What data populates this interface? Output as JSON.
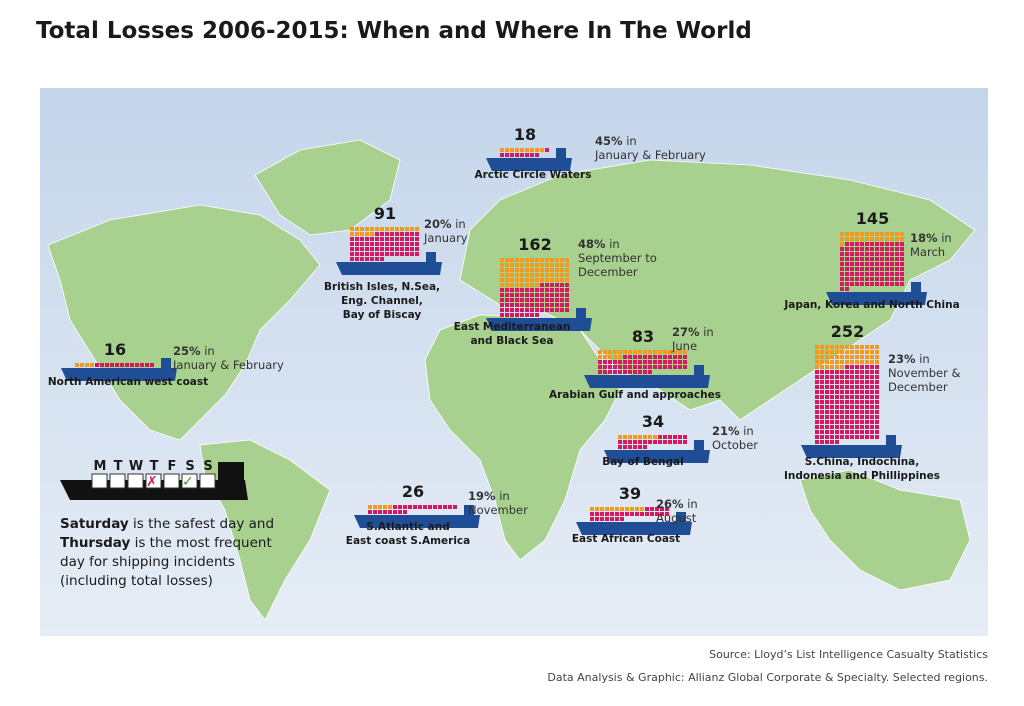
{
  "header": {
    "title": "Total Losses 2006-2015: When and Where In The World"
  },
  "connector": "in",
  "regions": [
    {
      "count": 18,
      "share": {
        "value": 45,
        "label": "45%"
      },
      "when": [
        "January & February"
      ],
      "name": [
        "Arctic Circle Waters"
      ]
    },
    {
      "count": 91,
      "share": {
        "value": 20,
        "label": "20%"
      },
      "when": [
        "January"
      ],
      "name": [
        "British Isles, N.Sea,",
        "Eng. Channel,",
        "Bay of Biscay"
      ]
    },
    {
      "count": 162,
      "share": {
        "value": 48,
        "label": "48%"
      },
      "when": [
        "September to",
        "December"
      ],
      "name": [
        "East Mediterranean",
        "and Black Sea"
      ]
    },
    {
      "count": 145,
      "share": {
        "value": 18,
        "label": "18%"
      },
      "when": [
        "March"
      ],
      "name": [
        "Japan, Korea and North China"
      ]
    },
    {
      "count": 16,
      "share": {
        "value": 25,
        "label": "25%"
      },
      "when": [
        "January & February"
      ],
      "name": [
        "North American west coast"
      ]
    },
    {
      "count": 83,
      "share": {
        "value": 27,
        "label": "27%"
      },
      "when": [
        "June"
      ],
      "name": [
        "Arabian Gulf and approaches"
      ]
    },
    {
      "count": 252,
      "share": {
        "value": 23,
        "label": "23%"
      },
      "when": [
        "November &",
        "December"
      ],
      "name": [
        "S.China, Indochina,",
        "Indonesia and Phillippines"
      ]
    },
    {
      "count": 34,
      "share": {
        "value": 21,
        "label": "21%"
      },
      "when": [
        "October"
      ],
      "name": [
        "Bay of Bengal"
      ]
    },
    {
      "count": 26,
      "share": {
        "value": 19,
        "label": "19%"
      },
      "when": [
        "November"
      ],
      "name": [
        "S.Atlantic and",
        "East coast S.America"
      ]
    },
    {
      "count": 39,
      "share": {
        "value": 26,
        "label": "26%"
      },
      "when": [
        "August"
      ],
      "name": [
        "East African Coast"
      ]
    }
  ],
  "weekdays": [
    "M",
    "T",
    "W",
    "T",
    "F",
    "S",
    "S"
  ],
  "note": [
    {
      "bold": "Saturday",
      "text": "is the safest day and"
    },
    {
      "bold": "Thursday",
      "text": "is the most frequent"
    },
    {
      "text": "day for shipping incidents"
    },
    {
      "text": "(including total losses)"
    }
  ],
  "footer": {
    "source": "Source: Lloyd’s List Intelligence Casualty Statistics",
    "credit": "Data Analysis & Graphic: Allianz Global Corporate & Specialty. Selected regions."
  }
}
